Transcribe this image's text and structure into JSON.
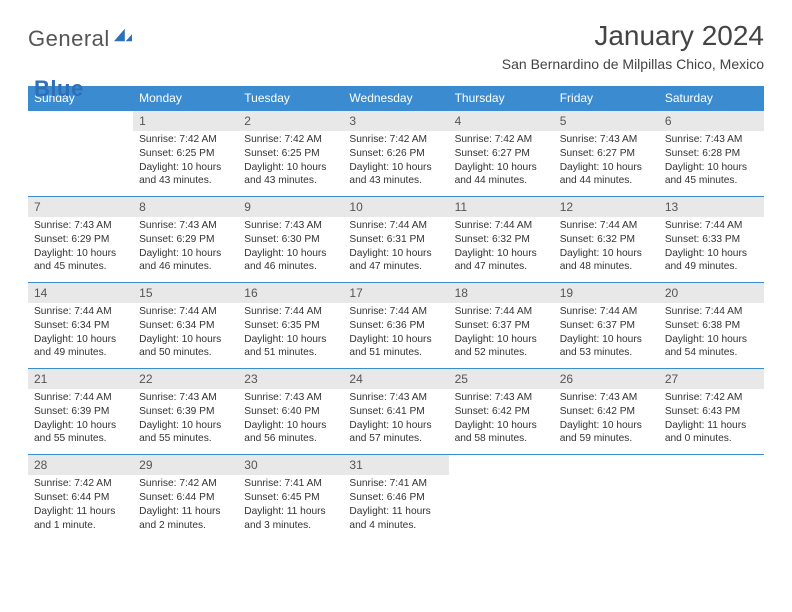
{
  "brand": {
    "word1": "General",
    "word2": "Blue"
  },
  "title": "January 2024",
  "location": "San Bernardino de Milpillas Chico, Mexico",
  "colors": {
    "header_bg": "#3b8bd0",
    "header_text": "#ffffff",
    "daynum_bg": "#e8e8e8",
    "daynum_text": "#555555",
    "body_text": "#333333",
    "rule": "#3b8bd0",
    "page_bg": "#ffffff",
    "brand_gray": "#555555",
    "brand_blue": "#2d6fb8"
  },
  "typography": {
    "title_fontsize": 28,
    "location_fontsize": 14,
    "header_fontsize": 12,
    "daynum_fontsize": 12,
    "body_fontsize": 10.2
  },
  "weekdays": [
    "Sunday",
    "Monday",
    "Tuesday",
    "Wednesday",
    "Thursday",
    "Friday",
    "Saturday"
  ],
  "weeks": [
    [
      null,
      {
        "n": "1",
        "sunrise": "Sunrise: 7:42 AM",
        "sunset": "Sunset: 6:25 PM",
        "daylight": "Daylight: 10 hours and 43 minutes."
      },
      {
        "n": "2",
        "sunrise": "Sunrise: 7:42 AM",
        "sunset": "Sunset: 6:25 PM",
        "daylight": "Daylight: 10 hours and 43 minutes."
      },
      {
        "n": "3",
        "sunrise": "Sunrise: 7:42 AM",
        "sunset": "Sunset: 6:26 PM",
        "daylight": "Daylight: 10 hours and 43 minutes."
      },
      {
        "n": "4",
        "sunrise": "Sunrise: 7:42 AM",
        "sunset": "Sunset: 6:27 PM",
        "daylight": "Daylight: 10 hours and 44 minutes."
      },
      {
        "n": "5",
        "sunrise": "Sunrise: 7:43 AM",
        "sunset": "Sunset: 6:27 PM",
        "daylight": "Daylight: 10 hours and 44 minutes."
      },
      {
        "n": "6",
        "sunrise": "Sunrise: 7:43 AM",
        "sunset": "Sunset: 6:28 PM",
        "daylight": "Daylight: 10 hours and 45 minutes."
      }
    ],
    [
      {
        "n": "7",
        "sunrise": "Sunrise: 7:43 AM",
        "sunset": "Sunset: 6:29 PM",
        "daylight": "Daylight: 10 hours and 45 minutes."
      },
      {
        "n": "8",
        "sunrise": "Sunrise: 7:43 AM",
        "sunset": "Sunset: 6:29 PM",
        "daylight": "Daylight: 10 hours and 46 minutes."
      },
      {
        "n": "9",
        "sunrise": "Sunrise: 7:43 AM",
        "sunset": "Sunset: 6:30 PM",
        "daylight": "Daylight: 10 hours and 46 minutes."
      },
      {
        "n": "10",
        "sunrise": "Sunrise: 7:44 AM",
        "sunset": "Sunset: 6:31 PM",
        "daylight": "Daylight: 10 hours and 47 minutes."
      },
      {
        "n": "11",
        "sunrise": "Sunrise: 7:44 AM",
        "sunset": "Sunset: 6:32 PM",
        "daylight": "Daylight: 10 hours and 47 minutes."
      },
      {
        "n": "12",
        "sunrise": "Sunrise: 7:44 AM",
        "sunset": "Sunset: 6:32 PM",
        "daylight": "Daylight: 10 hours and 48 minutes."
      },
      {
        "n": "13",
        "sunrise": "Sunrise: 7:44 AM",
        "sunset": "Sunset: 6:33 PM",
        "daylight": "Daylight: 10 hours and 49 minutes."
      }
    ],
    [
      {
        "n": "14",
        "sunrise": "Sunrise: 7:44 AM",
        "sunset": "Sunset: 6:34 PM",
        "daylight": "Daylight: 10 hours and 49 minutes."
      },
      {
        "n": "15",
        "sunrise": "Sunrise: 7:44 AM",
        "sunset": "Sunset: 6:34 PM",
        "daylight": "Daylight: 10 hours and 50 minutes."
      },
      {
        "n": "16",
        "sunrise": "Sunrise: 7:44 AM",
        "sunset": "Sunset: 6:35 PM",
        "daylight": "Daylight: 10 hours and 51 minutes."
      },
      {
        "n": "17",
        "sunrise": "Sunrise: 7:44 AM",
        "sunset": "Sunset: 6:36 PM",
        "daylight": "Daylight: 10 hours and 51 minutes."
      },
      {
        "n": "18",
        "sunrise": "Sunrise: 7:44 AM",
        "sunset": "Sunset: 6:37 PM",
        "daylight": "Daylight: 10 hours and 52 minutes."
      },
      {
        "n": "19",
        "sunrise": "Sunrise: 7:44 AM",
        "sunset": "Sunset: 6:37 PM",
        "daylight": "Daylight: 10 hours and 53 minutes."
      },
      {
        "n": "20",
        "sunrise": "Sunrise: 7:44 AM",
        "sunset": "Sunset: 6:38 PM",
        "daylight": "Daylight: 10 hours and 54 minutes."
      }
    ],
    [
      {
        "n": "21",
        "sunrise": "Sunrise: 7:44 AM",
        "sunset": "Sunset: 6:39 PM",
        "daylight": "Daylight: 10 hours and 55 minutes."
      },
      {
        "n": "22",
        "sunrise": "Sunrise: 7:43 AM",
        "sunset": "Sunset: 6:39 PM",
        "daylight": "Daylight: 10 hours and 55 minutes."
      },
      {
        "n": "23",
        "sunrise": "Sunrise: 7:43 AM",
        "sunset": "Sunset: 6:40 PM",
        "daylight": "Daylight: 10 hours and 56 minutes."
      },
      {
        "n": "24",
        "sunrise": "Sunrise: 7:43 AM",
        "sunset": "Sunset: 6:41 PM",
        "daylight": "Daylight: 10 hours and 57 minutes."
      },
      {
        "n": "25",
        "sunrise": "Sunrise: 7:43 AM",
        "sunset": "Sunset: 6:42 PM",
        "daylight": "Daylight: 10 hours and 58 minutes."
      },
      {
        "n": "26",
        "sunrise": "Sunrise: 7:43 AM",
        "sunset": "Sunset: 6:42 PM",
        "daylight": "Daylight: 10 hours and 59 minutes."
      },
      {
        "n": "27",
        "sunrise": "Sunrise: 7:42 AM",
        "sunset": "Sunset: 6:43 PM",
        "daylight": "Daylight: 11 hours and 0 minutes."
      }
    ],
    [
      {
        "n": "28",
        "sunrise": "Sunrise: 7:42 AM",
        "sunset": "Sunset: 6:44 PM",
        "daylight": "Daylight: 11 hours and 1 minute."
      },
      {
        "n": "29",
        "sunrise": "Sunrise: 7:42 AM",
        "sunset": "Sunset: 6:44 PM",
        "daylight": "Daylight: 11 hours and 2 minutes."
      },
      {
        "n": "30",
        "sunrise": "Sunrise: 7:41 AM",
        "sunset": "Sunset: 6:45 PM",
        "daylight": "Daylight: 11 hours and 3 minutes."
      },
      {
        "n": "31",
        "sunrise": "Sunrise: 7:41 AM",
        "sunset": "Sunset: 6:46 PM",
        "daylight": "Daylight: 11 hours and 4 minutes."
      },
      null,
      null,
      null
    ]
  ]
}
